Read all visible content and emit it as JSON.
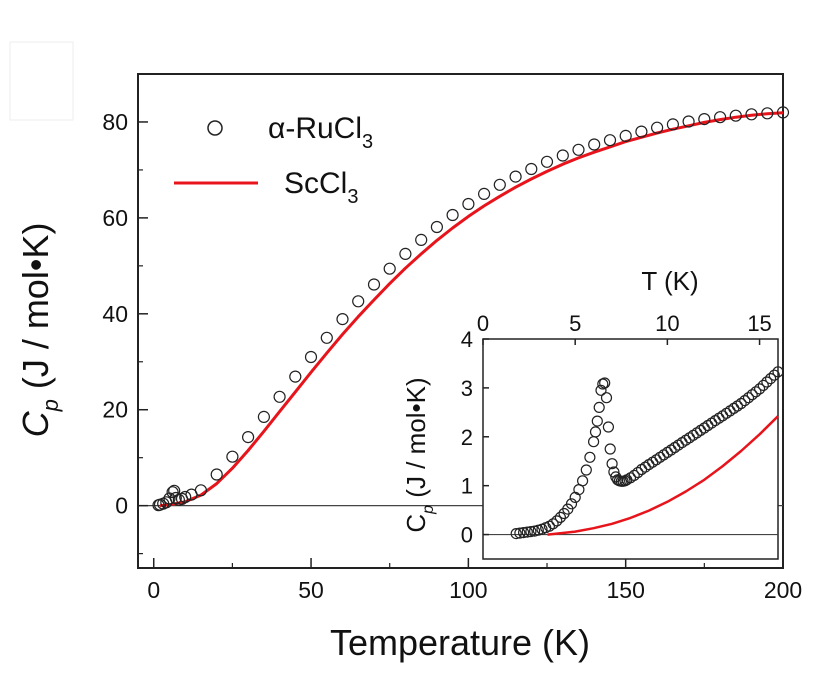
{
  "chart_data": [
    {
      "type": "scatter",
      "xlabel": "Temperature (K)",
      "ylabel": "C",
      "ylabel_subscript": "p",
      "ylabel_units": " (J / mol•K)",
      "xlim": [
        -5,
        200
      ],
      "ylim": [
        -13,
        90
      ],
      "xticks": [
        0,
        50,
        100,
        150,
        200
      ],
      "yticks": [
        0,
        20,
        40,
        60,
        80
      ],
      "legend": {
        "placement": "top-left",
        "entries": [
          {
            "label_main": "α-RuCl",
            "label_sub": "3",
            "marker": "open-circle"
          },
          {
            "label_main": "ScCl",
            "label_sub": "3",
            "marker": "red-line"
          }
        ]
      },
      "series": [
        {
          "name": "α-RuCl3",
          "style": "open-circle",
          "x": [
            1.5,
            2,
            3,
            4,
            5,
            6,
            6.5,
            7,
            8,
            9,
            10,
            12,
            15,
            20,
            25,
            30,
            35,
            40,
            45,
            50,
            55,
            60,
            65,
            70,
            75,
            80,
            85,
            90,
            95,
            100,
            105,
            110,
            115,
            120,
            125,
            130,
            135,
            140,
            145,
            150,
            155,
            160,
            165,
            170,
            175,
            180,
            185,
            190,
            195,
            200
          ],
          "y": [
            0.1,
            0.2,
            0.4,
            0.7,
            1.5,
            2.8,
            3.1,
            1.6,
            1.2,
            1.4,
            1.8,
            2.3,
            3.2,
            6.5,
            10.2,
            14.3,
            18.5,
            22.7,
            26.9,
            31.0,
            35.0,
            38.9,
            42.6,
            46.1,
            49.4,
            52.5,
            55.4,
            58.1,
            60.6,
            62.9,
            65.0,
            66.9,
            68.6,
            70.2,
            71.7,
            73.0,
            74.2,
            75.3,
            76.2,
            77.1,
            78.0,
            78.8,
            79.5,
            80.1,
            80.6,
            81.0,
            81.3,
            81.6,
            81.8,
            82.0
          ]
        },
        {
          "name": "ScCl3",
          "style": "red-line",
          "color": "#e8141c",
          "x": [
            2,
            5,
            10,
            15,
            20,
            25,
            30,
            35,
            40,
            45,
            50,
            55,
            60,
            65,
            70,
            75,
            80,
            85,
            90,
            95,
            100,
            105,
            110,
            115,
            120,
            125,
            130,
            135,
            140,
            145,
            150,
            155,
            160,
            165,
            170,
            175,
            180,
            185,
            190,
            195,
            200
          ],
          "y": [
            0.0,
            0.2,
            0.8,
            2.2,
            4.6,
            7.8,
            11.5,
            15.5,
            19.6,
            23.7,
            27.8,
            31.8,
            35.7,
            39.4,
            42.9,
            46.3,
            49.5,
            52.5,
            55.3,
            57.9,
            60.3,
            62.5,
            64.5,
            66.4,
            68.1,
            69.7,
            71.2,
            72.5,
            73.7,
            74.8,
            75.9,
            76.8,
            77.7,
            78.5,
            79.2,
            79.9,
            80.5,
            81.0,
            81.4,
            81.7,
            81.9
          ]
        }
      ],
      "zero_line": 0
    },
    {
      "type": "scatter",
      "inset": true,
      "xlabel": "T (K)",
      "ylabel": "C",
      "ylabel_subscript": "p",
      "ylabel_units": " (J / mol•K)",
      "xlim": [
        0,
        16
      ],
      "ylim": [
        -0.5,
        4
      ],
      "xticks": [
        0,
        5,
        10,
        15
      ],
      "yticks": [
        0,
        1,
        2,
        3,
        4
      ],
      "series": [
        {
          "name": "α-RuCl3",
          "style": "open-circle",
          "x": [
            1.8,
            2.0,
            2.2,
            2.4,
            2.6,
            2.8,
            3.0,
            3.2,
            3.4,
            3.6,
            3.8,
            4.0,
            4.2,
            4.4,
            4.6,
            4.8,
            5.0,
            5.2,
            5.4,
            5.6,
            5.8,
            6.0,
            6.1,
            6.2,
            6.3,
            6.4,
            6.5,
            6.6,
            6.7,
            6.8,
            6.9,
            7.0,
            7.1,
            7.2,
            7.3,
            7.4,
            7.5,
            7.6,
            7.7,
            7.8,
            8.0,
            8.2,
            8.4,
            8.6,
            8.8,
            9.0,
            9.2,
            9.4,
            9.6,
            9.8,
            10.0,
            10.2,
            10.4,
            10.6,
            10.8,
            11.0,
            11.2,
            11.4,
            11.6,
            11.8,
            12.0,
            12.2,
            12.4,
            12.6,
            12.8,
            13.0,
            13.2,
            13.4,
            13.6,
            13.8,
            14.0,
            14.2,
            14.4,
            14.6,
            14.8,
            15.0,
            15.2,
            15.4,
            15.6,
            15.8,
            16.0
          ],
          "y": [
            0.02,
            0.03,
            0.04,
            0.05,
            0.06,
            0.07,
            0.09,
            0.11,
            0.14,
            0.17,
            0.22,
            0.28,
            0.35,
            0.43,
            0.52,
            0.63,
            0.76,
            0.92,
            1.1,
            1.32,
            1.58,
            1.9,
            2.1,
            2.32,
            2.6,
            2.95,
            3.08,
            3.1,
            2.8,
            2.2,
            1.75,
            1.45,
            1.28,
            1.18,
            1.12,
            1.1,
            1.09,
            1.09,
            1.1,
            1.12,
            1.16,
            1.21,
            1.27,
            1.33,
            1.38,
            1.43,
            1.48,
            1.53,
            1.58,
            1.63,
            1.68,
            1.73,
            1.78,
            1.83,
            1.88,
            1.93,
            1.98,
            2.03,
            2.08,
            2.13,
            2.18,
            2.23,
            2.28,
            2.33,
            2.38,
            2.43,
            2.48,
            2.53,
            2.58,
            2.63,
            2.68,
            2.74,
            2.8,
            2.86,
            2.92,
            2.98,
            3.05,
            3.12,
            3.19,
            3.26,
            3.33
          ]
        },
        {
          "name": "ScCl3",
          "style": "red-line",
          "color": "#e8141c",
          "x": [
            3.5,
            4,
            5,
            6,
            7,
            8,
            9,
            10,
            11,
            12,
            13,
            14,
            15,
            16
          ],
          "y": [
            0.0,
            0.02,
            0.06,
            0.13,
            0.22,
            0.34,
            0.49,
            0.67,
            0.88,
            1.12,
            1.4,
            1.71,
            2.05,
            2.42
          ]
        }
      ],
      "zero_line": 0
    }
  ]
}
